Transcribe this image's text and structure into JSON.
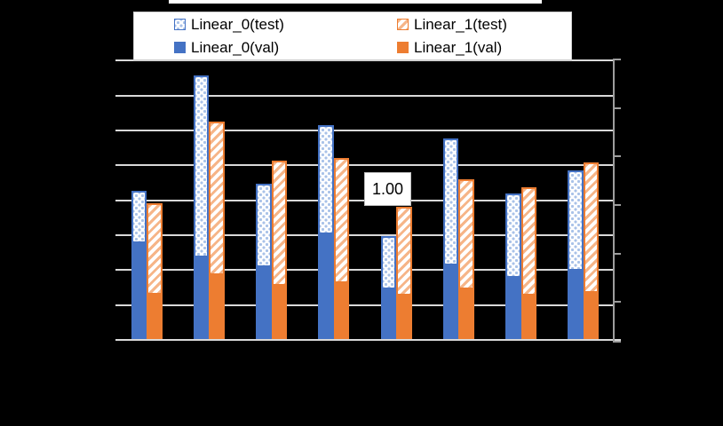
{
  "chart": {
    "background": "#000000",
    "colors": {
      "blue": "#4472C4",
      "orange": "#ED7D31",
      "light_blue_hatch": "#A9C2E8",
      "light_orange_hatch": "#F6B588",
      "gridline": "#D9D9D9",
      "axis_line": "#9E9E9E",
      "legend_bg": "#FFFFFF",
      "label_text": "#000000"
    },
    "legend": {
      "position": "top",
      "items": [
        {
          "label": "Linear_0(test)",
          "swatch": "hatch-blue"
        },
        {
          "label": "Linear_1(test)",
          "swatch": "hatch-orange"
        },
        {
          "label": "Linear_0(val)",
          "swatch": "solid-blue"
        },
        {
          "label": "Linear_1(val)",
          "swatch": "solid-orange"
        }
      ]
    }
  },
  "chart_data": {
    "type": "bar",
    "title": "",
    "categories": [
      "",
      "",
      "",
      "",
      "",
      "",
      "",
      ""
    ],
    "series": [
      {
        "name": "Linear_0(test)",
        "style": "hatched-blue",
        "values": [
          1.12,
          2.0,
          1.18,
          1.62,
          0.78,
          1.52,
          1.1,
          1.28
        ]
      },
      {
        "name": "Linear_0(val)",
        "style": "solid-blue",
        "values": [
          0.74,
          0.63,
          0.56,
          0.81,
          0.39,
          0.57,
          0.48,
          0.53
        ]
      },
      {
        "name": "Linear_1(test)",
        "style": "hatched-orange",
        "values": [
          1.03,
          1.65,
          1.35,
          1.37,
          1.0,
          1.21,
          1.15,
          1.34
        ]
      },
      {
        "name": "Linear_1(val)",
        "style": "solid-orange",
        "values": [
          0.35,
          0.5,
          0.42,
          0.44,
          0.34,
          0.39,
          0.34,
          0.36
        ]
      }
    ],
    "data_label": {
      "text": "1.00",
      "series": "Linear_1(test)",
      "category_index": 4
    },
    "value_basis": "relative scale; 1.00 equals the labeled bar",
    "grid": true,
    "legend_position": "top",
    "ylim": [
      0,
      2.12
    ],
    "y_axis": {
      "labels_visible": false,
      "gridline_count": 9
    },
    "x_axis": {
      "labels_visible": false
    },
    "secondary_y_axis": {
      "labels_visible": false,
      "tick_count": 7,
      "side": "right"
    }
  }
}
